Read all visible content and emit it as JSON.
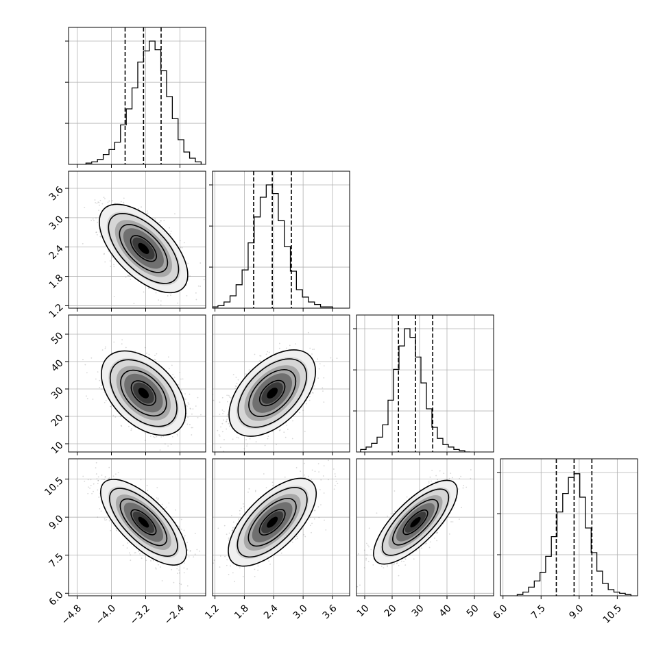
{
  "chart_data": {
    "type": "corner",
    "n_params": 4,
    "params": [
      {
        "range": [
          -5.0,
          -1.8
        ],
        "median": -3.25,
        "q16": -3.68,
        "q84": -2.84,
        "ticks": [
          -4.8,
          -4.0,
          -3.2,
          -2.4
        ],
        "tick_labels": [
          "−4.8",
          "−4.0",
          "−3.2",
          "−2.4"
        ]
      },
      {
        "range": [
          1.15,
          3.95
        ],
        "median": 2.37,
        "q16": 1.99,
        "q84": 2.76,
        "ticks": [
          1.2,
          1.8,
          2.4,
          3.0,
          3.6
        ],
        "tick_labels": [
          "1.2",
          "1.8",
          "2.4",
          "3.0",
          "3.6"
        ]
      },
      {
        "range": [
          7,
          57
        ],
        "median": 28.5,
        "q16": 22.3,
        "q84": 34.8,
        "ticks": [
          10,
          20,
          30,
          40,
          50
        ],
        "tick_labels": [
          "10",
          "20",
          "30",
          "40",
          "50"
        ]
      },
      {
        "range": [
          5.9,
          11.3
        ],
        "median": 8.8,
        "q16": 8.1,
        "q84": 9.5,
        "ticks": [
          6.0,
          7.5,
          9.0,
          10.5
        ],
        "tick_labels": [
          "6.0",
          "7.5",
          "9.0",
          "10.5"
        ]
      }
    ],
    "histograms": [
      [
        0.01,
        0.02,
        0.04,
        0.08,
        0.12,
        0.18,
        0.32,
        0.45,
        0.62,
        0.83,
        0.92,
        1.0,
        0.93,
        0.76,
        0.55,
        0.37,
        0.2,
        0.1,
        0.05,
        0.02
      ],
      [
        0.01,
        0.02,
        0.05,
        0.1,
        0.19,
        0.31,
        0.53,
        0.74,
        0.9,
        1.0,
        0.93,
        0.71,
        0.5,
        0.3,
        0.15,
        0.09,
        0.05,
        0.03,
        0.01,
        0.01
      ],
      [
        0.02,
        0.04,
        0.07,
        0.12,
        0.22,
        0.42,
        0.67,
        0.86,
        1.0,
        0.93,
        0.77,
        0.56,
        0.35,
        0.2,
        0.11,
        0.06,
        0.04,
        0.02,
        0.01,
        0.0
      ],
      [
        0.01,
        0.03,
        0.07,
        0.12,
        0.19,
        0.32,
        0.48,
        0.68,
        0.83,
        0.96,
        0.99,
        0.8,
        0.55,
        0.35,
        0.2,
        0.1,
        0.05,
        0.03,
        0.02,
        0.01
      ]
    ],
    "pairs": [
      {
        "x": 0,
        "y": 1,
        "rho": -0.6
      },
      {
        "x": 0,
        "y": 2,
        "rho": -0.45
      },
      {
        "x": 1,
        "y": 2,
        "rho": 0.5
      },
      {
        "x": 0,
        "y": 3,
        "rho": -0.7
      },
      {
        "x": 1,
        "y": 3,
        "rho": 0.65
      },
      {
        "x": 2,
        "y": 3,
        "rho": 0.75
      }
    ],
    "grid": true,
    "quantile_lines": "dashed",
    "title": "",
    "xlabel": "",
    "ylabel": ""
  }
}
